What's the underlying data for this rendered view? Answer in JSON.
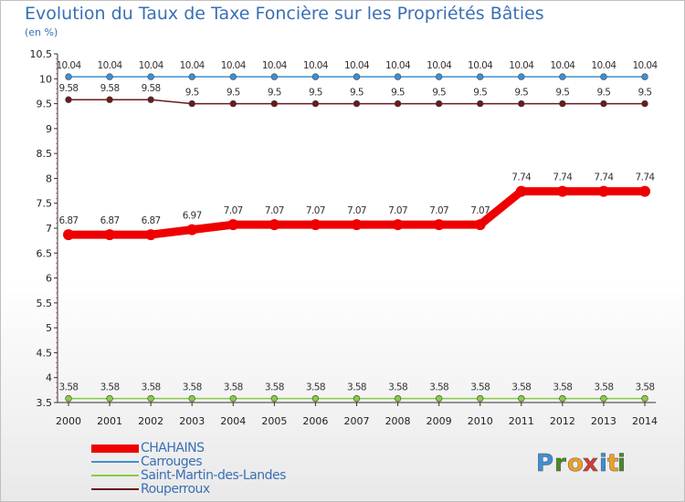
{
  "title": "Evolution du Taux de Taxe Foncière sur les Propriétés Bâties",
  "subtitle": "(en %)",
  "logo": {
    "letters": [
      "P",
      "r",
      "o",
      "x",
      "i",
      "t",
      "i"
    ],
    "colors": [
      "#3c8fd6",
      "#4a8a2a",
      "#f0a020",
      "#d43a3a",
      "#3c8fd6",
      "#f0a020",
      "#4a8a2a"
    ]
  },
  "chart_data": {
    "type": "line",
    "title": "Evolution du Taux de Taxe Foncière sur les Propriétés Bâties",
    "ylabel": "(en %)",
    "xlabel": "",
    "x": [
      "2000",
      "2001",
      "2002",
      "2003",
      "2004",
      "2005",
      "2006",
      "2007",
      "2008",
      "2009",
      "2010",
      "2011",
      "2012",
      "2013",
      "2014"
    ],
    "ylim": [
      3.5,
      10.5
    ],
    "yticks": [
      "3.5",
      "4",
      "4.5",
      "5",
      "5.5",
      "6",
      "6.5",
      "7",
      "7.5",
      "8",
      "8.5",
      "9",
      "9.5",
      "10",
      "10.5"
    ],
    "series": [
      {
        "name": "CHAHAINS",
        "color": "#ee0000",
        "bold": true,
        "values": [
          6.87,
          6.87,
          6.87,
          6.97,
          7.07,
          7.07,
          7.07,
          7.07,
          7.07,
          7.07,
          7.07,
          7.74,
          7.74,
          7.74,
          7.74
        ],
        "labels": [
          "6.87",
          "6.87",
          "6.87",
          "6.97",
          "7.07",
          "7.07",
          "7.07",
          "7.07",
          "7.07",
          "7.07",
          "7.07",
          "7.74",
          "7.74",
          "7.74",
          "7.74"
        ]
      },
      {
        "name": "Carrouges",
        "color": "#3f8fd2",
        "bold": false,
        "values": [
          10.04,
          10.04,
          10.04,
          10.04,
          10.04,
          10.04,
          10.04,
          10.04,
          10.04,
          10.04,
          10.04,
          10.04,
          10.04,
          10.04,
          10.04
        ],
        "labels": [
          "10.04",
          "10.04",
          "10.04",
          "10.04",
          "10.04",
          "10.04",
          "10.04",
          "10.04",
          "10.04",
          "10.04",
          "10.04",
          "10.04",
          "10.04",
          "10.04",
          "10.04"
        ]
      },
      {
        "name": "Saint-Martin-des-Landes",
        "color": "#88cc44",
        "bold": false,
        "values": [
          3.58,
          3.58,
          3.58,
          3.58,
          3.58,
          3.58,
          3.58,
          3.58,
          3.58,
          3.58,
          3.58,
          3.58,
          3.58,
          3.58,
          3.58
        ],
        "labels": [
          "3.58",
          "3.58",
          "3.58",
          "3.58",
          "3.58",
          "3.58",
          "3.58",
          "3.58",
          "3.58",
          "3.58",
          "3.58",
          "3.58",
          "3.58",
          "3.58",
          "3.58"
        ]
      },
      {
        "name": "Rouperroux",
        "color": "#6b1a1a",
        "bold": false,
        "values": [
          9.58,
          9.58,
          9.58,
          9.5,
          9.5,
          9.5,
          9.5,
          9.5,
          9.5,
          9.5,
          9.5,
          9.5,
          9.5,
          9.5,
          9.5
        ],
        "labels": [
          "9.58",
          "9.58",
          "9.58",
          "9.5",
          "9.5",
          "9.5",
          "9.5",
          "9.5",
          "9.5",
          "9.5",
          "9.5",
          "9.5",
          "9.5",
          "9.5",
          "9.5"
        ]
      }
    ],
    "legend_position": "bottom-left",
    "grid": false
  }
}
